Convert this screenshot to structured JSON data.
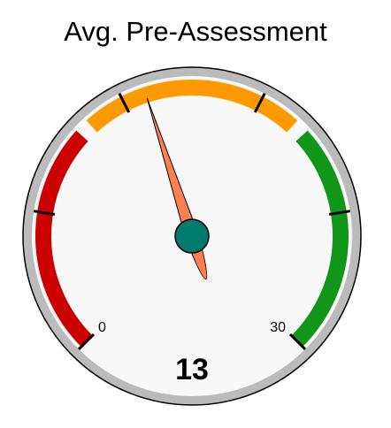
{
  "chart_data": {
    "type": "gauge",
    "title": "Avg. Pre-Assessment",
    "value": 13,
    "value_label": "13",
    "range": [
      0,
      30
    ],
    "min_label": "0",
    "max_label": "30",
    "bands": [
      {
        "from": 0,
        "to": 10,
        "color": "#cc0000"
      },
      {
        "from": 10,
        "to": 20,
        "color": "#ff9900"
      },
      {
        "from": 20,
        "to": 30,
        "color": "#109618"
      }
    ],
    "colors": {
      "face": "#f8f8f8",
      "rim": "#bbbbbb",
      "needle": "#ff7f50",
      "hub": "#007b6e",
      "text": "#000000"
    }
  }
}
